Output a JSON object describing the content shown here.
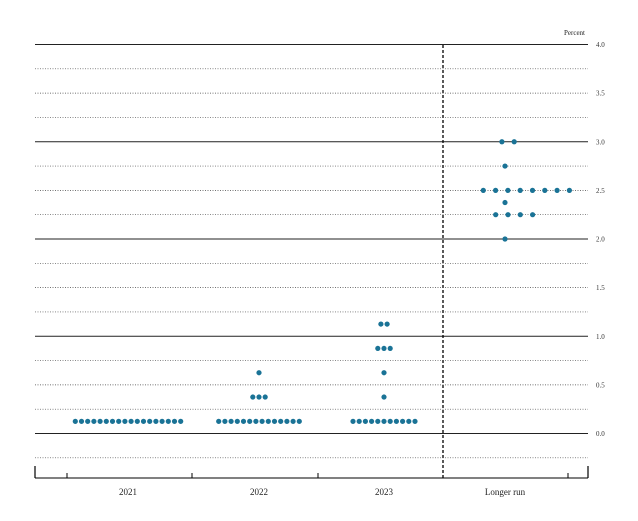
{
  "chart_data": {
    "type": "scatter",
    "unit_label": "Percent",
    "ylim": [
      -0.25,
      4.0
    ],
    "y_ticks": [
      "0.0",
      "0.5",
      "1.0",
      "1.5",
      "2.0",
      "2.5",
      "3.0",
      "3.5",
      "4.0"
    ],
    "y_tick_values": [
      0.0,
      0.5,
      1.0,
      1.5,
      2.0,
      2.5,
      3.0,
      3.5,
      4.0
    ],
    "categories": [
      "2021",
      "2022",
      "2023",
      "Longer run"
    ],
    "dot_color": "#1a7396",
    "grid": "solid at whole percents, dotted at quarter-percent steps",
    "divider": "dashed vertical line before Longer run",
    "rows": [
      {
        "category": "2021",
        "value": 0.125,
        "count": 18
      },
      {
        "category": "2022",
        "value": 0.125,
        "count": 14
      },
      {
        "category": "2022",
        "value": 0.375,
        "count": 3
      },
      {
        "category": "2022",
        "value": 0.625,
        "count": 1
      },
      {
        "category": "2023",
        "value": 0.125,
        "count": 11
      },
      {
        "category": "2023",
        "value": 0.375,
        "count": 1
      },
      {
        "category": "2023",
        "value": 0.625,
        "count": 1
      },
      {
        "category": "2023",
        "value": 0.875,
        "count": 3
      },
      {
        "category": "2023",
        "value": 1.125,
        "count": 2
      },
      {
        "category": "Longer run",
        "value": 2.0,
        "count": 1
      },
      {
        "category": "Longer run",
        "value": 2.25,
        "count": 4
      },
      {
        "category": "Longer run",
        "value": 2.375,
        "count": 1
      },
      {
        "category": "Longer run",
        "value": 2.5,
        "count": 8
      },
      {
        "category": "Longer run",
        "value": 2.75,
        "count": 1
      },
      {
        "category": "Longer run",
        "value": 3.0,
        "count": 2
      }
    ]
  }
}
